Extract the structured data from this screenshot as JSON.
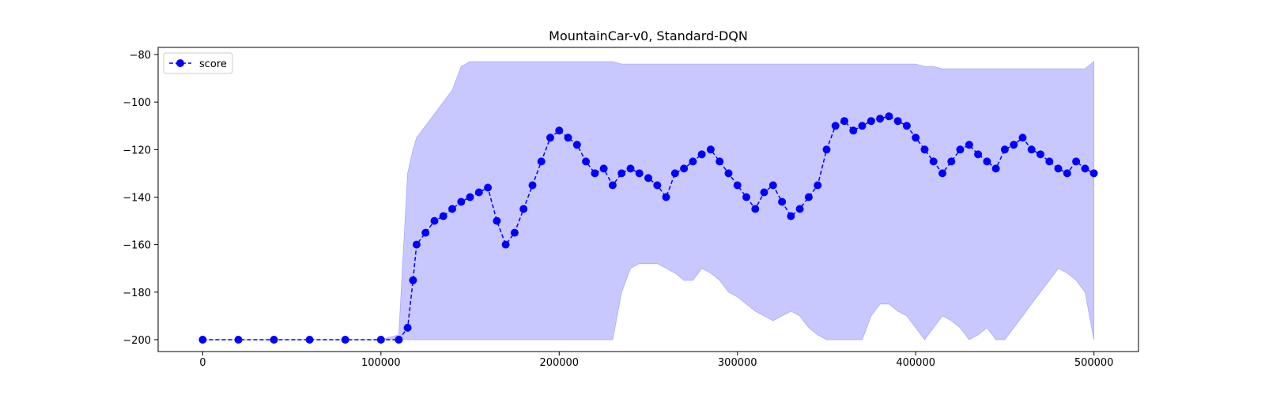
{
  "chart_data": {
    "type": "line",
    "title": "MountainCar-v0, Standard-DQN",
    "xlabel": "",
    "ylabel": "",
    "xlim": [
      -25000,
      525000
    ],
    "ylim": [
      -205,
      -77
    ],
    "x_ticks": [
      0,
      100000,
      200000,
      300000,
      400000,
      500000
    ],
    "x_tick_labels": [
      "0",
      "100000",
      "200000",
      "300000",
      "400000",
      "500000"
    ],
    "y_ticks": [
      -200,
      -180,
      -160,
      -140,
      -120,
      -100,
      -80
    ],
    "y_tick_labels": [
      "−200",
      "−180",
      "−160",
      "−140",
      "−120",
      "−100",
      "−80"
    ],
    "grid": false,
    "legend": {
      "position": "top-left",
      "entries": [
        "score"
      ]
    },
    "colors": {
      "series": "#0000ff",
      "band": "#c8c8ff"
    },
    "series": [
      {
        "name": "score",
        "style": "dashed line with circle markers",
        "x": [
          0,
          20000,
          40000,
          60000,
          80000,
          100000,
          110000,
          115000,
          118000,
          120000,
          125000,
          130000,
          135000,
          140000,
          145000,
          150000,
          155000,
          160000,
          165000,
          170000,
          175000,
          180000,
          185000,
          190000,
          195000,
          200000,
          205000,
          210000,
          215000,
          220000,
          225000,
          230000,
          235000,
          240000,
          245000,
          250000,
          255000,
          260000,
          265000,
          270000,
          275000,
          280000,
          285000,
          290000,
          295000,
          300000,
          305000,
          310000,
          315000,
          320000,
          325000,
          330000,
          335000,
          340000,
          345000,
          350000,
          355000,
          360000,
          365000,
          370000,
          375000,
          380000,
          385000,
          390000,
          395000,
          400000,
          405000,
          410000,
          415000,
          420000,
          425000,
          430000,
          435000,
          440000,
          445000,
          450000,
          455000,
          460000,
          465000,
          470000,
          475000,
          480000,
          485000,
          490000,
          495000,
          500000
        ],
        "y": [
          -200,
          -200,
          -200,
          -200,
          -200,
          -200,
          -200,
          -195,
          -175,
          -160,
          -155,
          -150,
          -148,
          -145,
          -142,
          -140,
          -138,
          -136,
          -150,
          -160,
          -155,
          -145,
          -135,
          -125,
          -115,
          -112,
          -115,
          -118,
          -125,
          -130,
          -128,
          -135,
          -130,
          -128,
          -130,
          -132,
          -135,
          -140,
          -130,
          -128,
          -125,
          -122,
          -120,
          -125,
          -130,
          -135,
          -140,
          -145,
          -138,
          -135,
          -142,
          -148,
          -145,
          -140,
          -135,
          -120,
          -110,
          -108,
          -112,
          -110,
          -108,
          -107,
          -106,
          -108,
          -110,
          -115,
          -120,
          -125,
          -130,
          -125,
          -120,
          -118,
          -122,
          -125,
          -128,
          -120,
          -118,
          -115,
          -120,
          -122,
          -125,
          -128,
          -130,
          -125,
          -128,
          -130
        ],
        "y_min": [
          -200,
          -200,
          -200,
          -200,
          -200,
          -200,
          -200,
          -200,
          -200,
          -200,
          -200,
          -200,
          -200,
          -200,
          -200,
          -200,
          -200,
          -200,
          -200,
          -200,
          -200,
          -200,
          -200,
          -200,
          -200,
          -200,
          -200,
          -200,
          -200,
          -200,
          -200,
          -200,
          -180,
          -170,
          -168,
          -168,
          -168,
          -170,
          -172,
          -175,
          -175,
          -170,
          -172,
          -175,
          -180,
          -182,
          -185,
          -188,
          -190,
          -192,
          -190,
          -188,
          -190,
          -195,
          -198,
          -200,
          -200,
          -200,
          -200,
          -200,
          -190,
          -185,
          -185,
          -188,
          -190,
          -195,
          -200,
          -195,
          -190,
          -192,
          -195,
          -200,
          -198,
          -195,
          -200,
          -200,
          -195,
          -190,
          -185,
          -180,
          -175,
          -170,
          -172,
          -175,
          -180,
          -200
        ],
        "y_max": [
          -200,
          -200,
          -200,
          -200,
          -200,
          -200,
          -198,
          -130,
          -120,
          -115,
          -110,
          -105,
          -100,
          -95,
          -85,
          -83,
          -83,
          -83,
          -83,
          -83,
          -83,
          -83,
          -83,
          -83,
          -83,
          -83,
          -83,
          -83,
          -83,
          -83,
          -83,
          -83,
          -84,
          -84,
          -84,
          -84,
          -84,
          -84,
          -84,
          -84,
          -84,
          -84,
          -84,
          -84,
          -84,
          -84,
          -84,
          -84,
          -84,
          -84,
          -84,
          -84,
          -84,
          -84,
          -84,
          -84,
          -84,
          -84,
          -84,
          -84,
          -84,
          -84,
          -84,
          -84,
          -84,
          -84,
          -85,
          -85,
          -86,
          -86,
          -86,
          -86,
          -86,
          -86,
          -86,
          -86,
          -86,
          -86,
          -86,
          -86,
          -86,
          -86,
          -86,
          -86,
          -86,
          -83
        ]
      }
    ]
  }
}
